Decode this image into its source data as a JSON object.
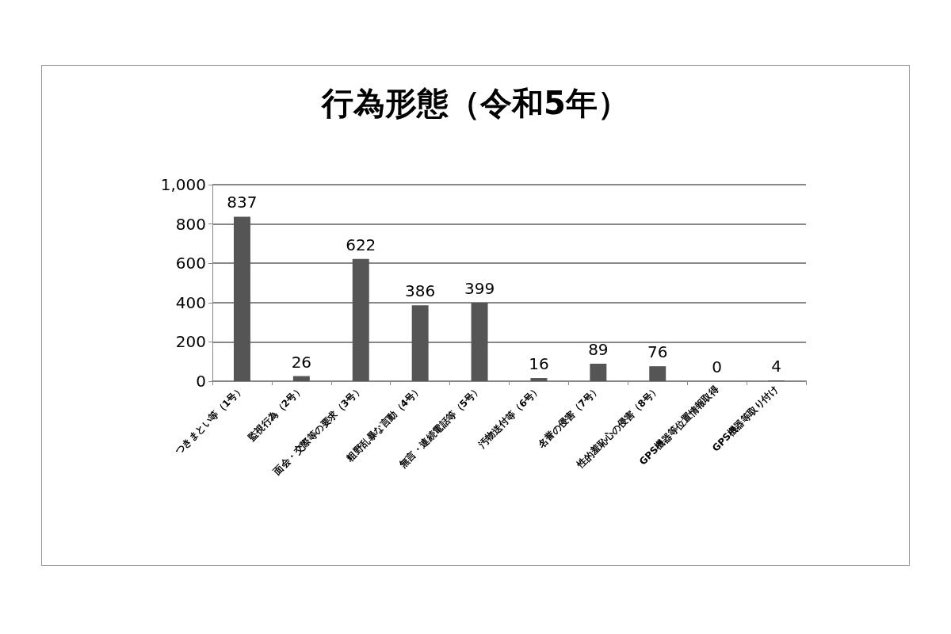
{
  "chart_data": {
    "type": "bar",
    "title": "行為形態（令和5年）",
    "categories": [
      "つきまとい等（1号）",
      "監視行為（2号）",
      "面会・交際等の要求（3号）",
      "粗野乱暴な言動（4号）",
      "無言・連続電話等（5号）",
      "汚物送付等（6号）",
      "名誉の侵害（7号）",
      "性的羞恥心の侵害（8号）",
      "GPS機器等位置情報取得",
      "GPS機器等取り付け"
    ],
    "values": [
      837,
      26,
      622,
      386,
      399,
      16,
      89,
      76,
      0,
      4
    ],
    "color": "#555555",
    "ylim": [
      0,
      1000
    ],
    "yticks": [
      0,
      200,
      400,
      600,
      800,
      {
        "value": 1000,
        "label": "1,000"
      }
    ],
    "grid": "y",
    "data_labels": true
  }
}
